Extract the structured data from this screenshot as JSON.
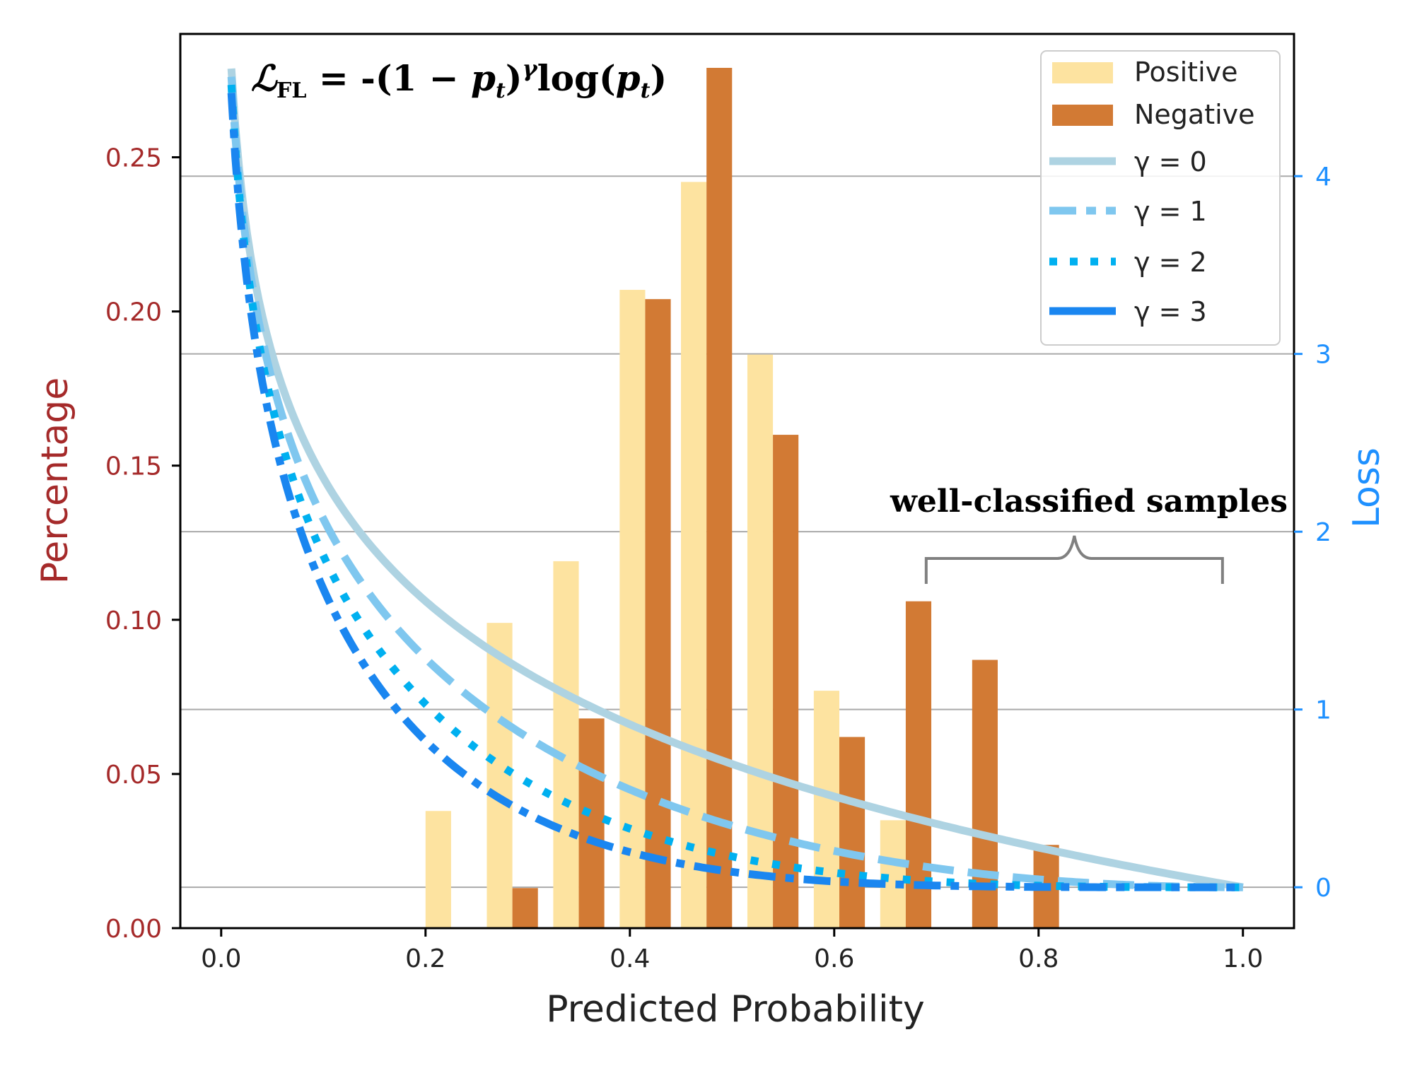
{
  "chart_data": {
    "type": "bar+line",
    "formula": {
      "main": "ℒ",
      "sub": "FL",
      "rest": " = -(1 − ",
      "p": "p",
      "t": "t",
      "close": ")",
      "gamma": "γ",
      "log": "log(",
      "p2": "p",
      "t2": "t",
      "end": ")"
    },
    "xlabel": "Predicted Probability",
    "ylabel_left": "Percentage",
    "ylabel_right": "Loss",
    "xlim": [
      -0.04,
      1.05
    ],
    "ylim_left": [
      0,
      0.29
    ],
    "ylim_right": [
      -0.23,
      4.8
    ],
    "x_ticks": [
      "0.0",
      "0.2",
      "0.4",
      "0.6",
      "0.8",
      "1.0"
    ],
    "y_left_ticks": [
      "0.00",
      "0.05",
      "0.10",
      "0.15",
      "0.20",
      "0.25"
    ],
    "y_right_ticks": [
      "0",
      "1",
      "2",
      "3",
      "4"
    ],
    "bars": {
      "bin_centers": [
        0.2,
        0.26,
        0.325,
        0.39,
        0.45,
        0.515,
        0.58,
        0.645,
        0.71,
        0.77
      ],
      "bar_width_data": 0.025,
      "positive": [
        0.038,
        0.099,
        0.119,
        0.207,
        0.242,
        0.186,
        0.077,
        0.035,
        0.0,
        0.0
      ],
      "negative": [
        0.0,
        0.013,
        0.068,
        0.204,
        0.279,
        0.16,
        0.062,
        0.106,
        0.087,
        0.027
      ]
    },
    "series_bars": [
      {
        "name": "Positive",
        "color": "#fde3a0"
      },
      {
        "name": "Negative",
        "color": "#d27a34"
      }
    ],
    "loss_curves": [
      {
        "name": "γ = 0",
        "gamma": 0,
        "color": "#aed3e2",
        "dash": "solid"
      },
      {
        "name": "γ = 1",
        "gamma": 1,
        "color": "#7fc7ef",
        "dash": "dashed"
      },
      {
        "name": "γ = 2",
        "gamma": 2,
        "color": "#00b0f0",
        "dash": "dotted"
      },
      {
        "name": "γ = 3",
        "gamma": 3,
        "color": "#1a86f0",
        "dash": "dashdot"
      }
    ],
    "legend_position": "top-right",
    "annotation": "well-classified samples",
    "annotation_range": [
      0.69,
      0.98
    ],
    "grid": "horizontal at loss ticks",
    "colors": {
      "left_axis": "#a52a2a",
      "right_axis": "#1e90ff",
      "bracket": "#808080",
      "grid": "#aaaaaa"
    }
  }
}
